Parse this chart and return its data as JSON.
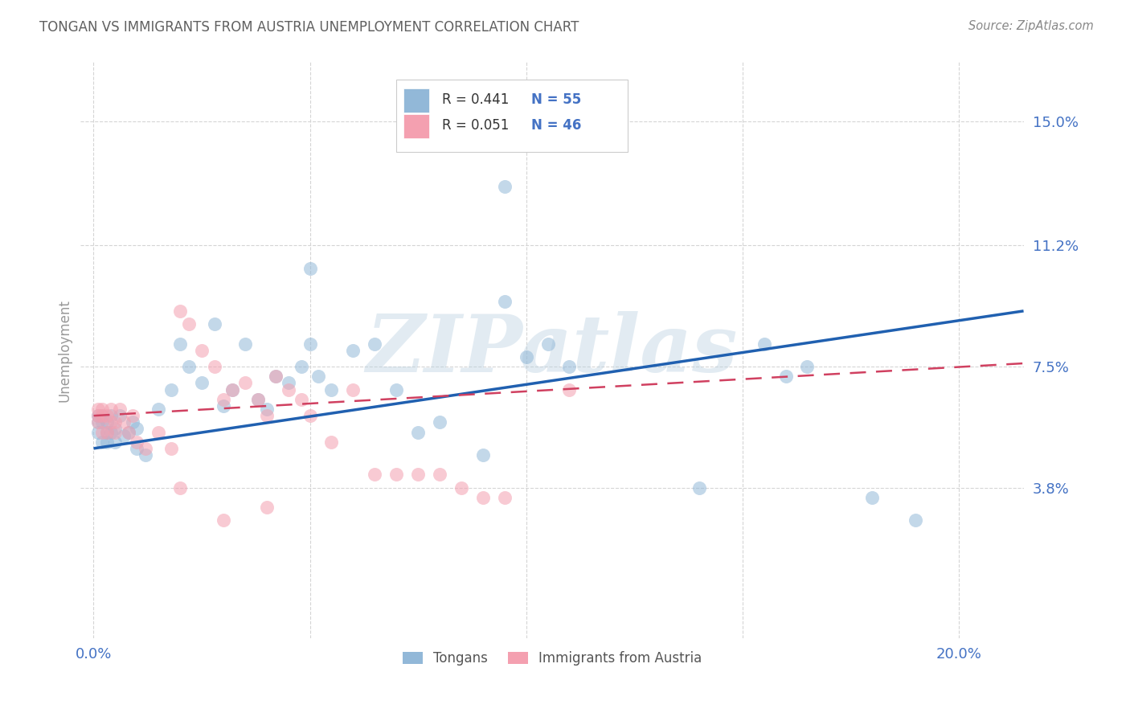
{
  "title": "TONGAN VS IMMIGRANTS FROM AUSTRIA UNEMPLOYMENT CORRELATION CHART",
  "source": "Source: ZipAtlas.com",
  "xlim": [
    -0.003,
    0.215
  ],
  "ylim": [
    -0.008,
    0.168
  ],
  "ylabel_ticks": [
    0.038,
    0.075,
    0.112,
    0.15
  ],
  "ylabel_labels": [
    "3.8%",
    "7.5%",
    "11.2%",
    "15.0%"
  ],
  "xtick_positions": [
    0.0,
    0.05,
    0.1,
    0.15,
    0.2
  ],
  "xtick_labels": [
    "0.0%",
    "",
    "",
    "",
    "20.0%"
  ],
  "blue_color": "#92b8d8",
  "blue_line_color": "#2060b0",
  "pink_color": "#f4a0b0",
  "pink_line_color": "#d04060",
  "legend_blue_r": "R = 0.441",
  "legend_blue_n": "N = 55",
  "legend_pink_r": "R = 0.051",
  "legend_pink_n": "N = 46",
  "legend_blue_label": "Tongans",
  "legend_pink_label": "Immigrants from Austria",
  "blue_trendline_x": [
    0.0,
    0.215
  ],
  "blue_trendline_y": [
    0.05,
    0.092
  ],
  "pink_trendline_x": [
    0.0,
    0.215
  ],
  "pink_trendline_y": [
    0.06,
    0.076
  ],
  "watermark": "ZIPatlas",
  "ylabel": "Unemployment",
  "background_color": "#ffffff",
  "grid_color": "#d5d5d5",
  "title_color": "#606060",
  "axis_tick_color": "#4472c4",
  "blue_x": [
    0.001,
    0.001,
    0.001,
    0.002,
    0.002,
    0.002,
    0.003,
    0.003,
    0.003,
    0.004,
    0.004,
    0.005,
    0.005,
    0.006,
    0.007,
    0.008,
    0.009,
    0.01,
    0.01,
    0.012,
    0.015,
    0.018,
    0.02,
    0.022,
    0.025,
    0.028,
    0.03,
    0.032,
    0.035,
    0.038,
    0.04,
    0.042,
    0.045,
    0.048,
    0.05,
    0.052,
    0.055,
    0.06,
    0.065,
    0.07,
    0.075,
    0.08,
    0.09,
    0.095,
    0.1,
    0.105,
    0.11,
    0.14,
    0.155,
    0.165,
    0.18,
    0.19,
    0.095,
    0.16,
    0.05
  ],
  "blue_y": [
    0.055,
    0.06,
    0.058,
    0.052,
    0.058,
    0.06,
    0.055,
    0.052,
    0.058,
    0.055,
    0.06,
    0.052,
    0.056,
    0.06,
    0.054,
    0.055,
    0.058,
    0.05,
    0.056,
    0.048,
    0.062,
    0.068,
    0.082,
    0.075,
    0.07,
    0.088,
    0.063,
    0.068,
    0.082,
    0.065,
    0.062,
    0.072,
    0.07,
    0.075,
    0.082,
    0.072,
    0.068,
    0.08,
    0.082,
    0.068,
    0.055,
    0.058,
    0.048,
    0.095,
    0.078,
    0.082,
    0.075,
    0.038,
    0.082,
    0.075,
    0.035,
    0.028,
    0.13,
    0.072,
    0.105
  ],
  "pink_x": [
    0.001,
    0.001,
    0.001,
    0.002,
    0.002,
    0.002,
    0.003,
    0.003,
    0.004,
    0.004,
    0.005,
    0.005,
    0.006,
    0.007,
    0.008,
    0.009,
    0.01,
    0.012,
    0.015,
    0.018,
    0.02,
    0.022,
    0.025,
    0.028,
    0.03,
    0.032,
    0.035,
    0.038,
    0.04,
    0.042,
    0.045,
    0.048,
    0.05,
    0.055,
    0.06,
    0.065,
    0.07,
    0.075,
    0.08,
    0.085,
    0.09,
    0.095,
    0.11,
    0.02,
    0.04,
    0.03
  ],
  "pink_y": [
    0.058,
    0.06,
    0.062,
    0.055,
    0.06,
    0.062,
    0.055,
    0.06,
    0.058,
    0.062,
    0.055,
    0.058,
    0.062,
    0.058,
    0.055,
    0.06,
    0.052,
    0.05,
    0.055,
    0.05,
    0.092,
    0.088,
    0.08,
    0.075,
    0.065,
    0.068,
    0.07,
    0.065,
    0.06,
    0.072,
    0.068,
    0.065,
    0.06,
    0.052,
    0.068,
    0.042,
    0.042,
    0.042,
    0.042,
    0.038,
    0.035,
    0.035,
    0.068,
    0.038,
    0.032,
    0.028
  ]
}
